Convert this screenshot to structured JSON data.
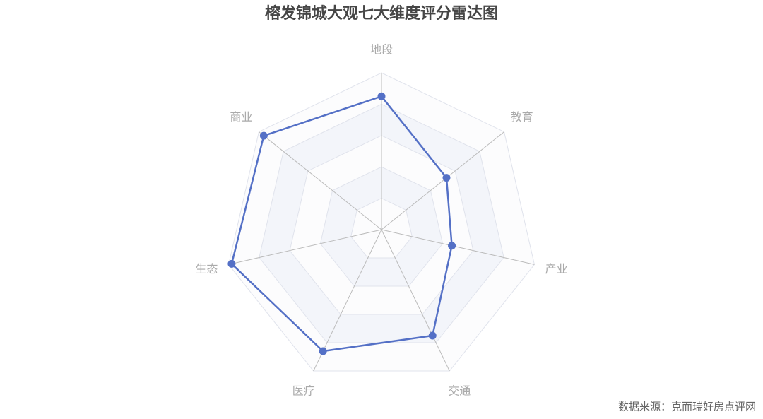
{
  "chart_data": {
    "type": "radar",
    "title": "榕发锦城大观七大维度评分雷达图",
    "categories": [
      "地段",
      "教育",
      "产业",
      "交通",
      "医疗",
      "生态",
      "商业"
    ],
    "series": [
      {
        "name": "榕发锦城大观",
        "color": "#5470c6",
        "values": [
          85,
          53,
          46,
          75,
          86,
          98,
          96
        ]
      }
    ],
    "rlim": [
      0,
      100
    ],
    "rticks": [
      0,
      20,
      40,
      60,
      80,
      100
    ],
    "source": "数据来源：克而瑞好房点评网"
  }
}
